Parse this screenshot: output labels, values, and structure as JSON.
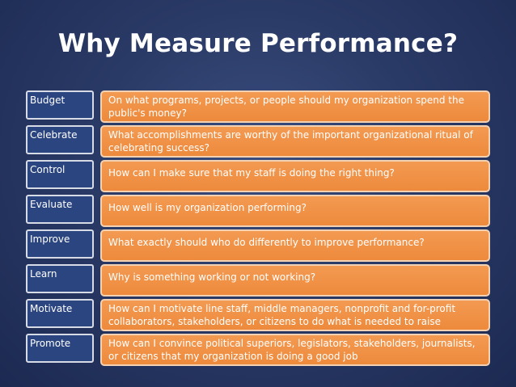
{
  "slide": {
    "title": "Why Measure Performance?"
  },
  "rows": [
    {
      "label": "Budget",
      "text": "On what programs, projects, or people should my organization spend the public's money?"
    },
    {
      "label": "Celebrate",
      "text": "What accomplishments are worthy of the important organizational ritual of celebrating success?"
    },
    {
      "label": "Control",
      "text": "How can I make sure that my staff is doing the right thing?"
    },
    {
      "label": "Evaluate",
      "text": "How well is my organization performing?"
    },
    {
      "label": "Improve",
      "text": "What exactly should who do differently to improve performance?"
    },
    {
      "label": "Learn",
      "text": "Why is something working or not working?"
    },
    {
      "label": "Motivate",
      "text": "How can I motivate line staff, middle managers, nonprofit and for-profit collaborators, stakeholders, or citizens to do what is needed to raise"
    },
    {
      "label": "Promote",
      "text": "How can I convince political superiors, legislators, stakeholders, journalists, or citizens that my organization is doing a good job"
    }
  ],
  "colors": {
    "background": "#2a3a66",
    "label_box": "#2b4580",
    "description_box": "#f0913f",
    "text": "#ffffff"
  }
}
